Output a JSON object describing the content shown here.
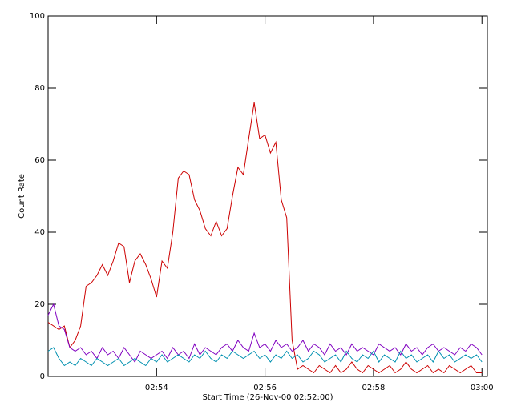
{
  "chart_data": {
    "type": "line",
    "x_label": "Start Time (26-Nov-00 02:52:00)",
    "y_label": "Count Rate",
    "x": [
      0,
      0.1,
      0.2,
      0.3,
      0.4,
      0.5,
      0.6,
      0.7,
      0.8,
      0.9,
      1,
      1.1,
      1.2,
      1.3,
      1.4,
      1.5,
      1.6,
      1.7,
      1.8,
      1.9,
      2,
      2.1,
      2.2,
      2.3,
      2.4,
      2.5,
      2.6,
      2.7,
      2.8,
      2.9,
      3,
      3.1,
      3.2,
      3.3,
      3.4,
      3.5,
      3.6,
      3.7,
      3.8,
      3.9,
      4,
      4.1,
      4.2,
      4.3,
      4.4,
      4.5,
      4.6,
      4.7,
      4.8,
      4.9,
      5,
      5.1,
      5.2,
      5.3,
      5.4,
      5.5,
      5.6,
      5.7,
      5.8,
      5.9,
      6,
      6.1,
      6.2,
      6.3,
      6.4,
      6.5,
      6.6,
      6.7,
      6.8,
      6.9,
      7,
      7.1,
      7.2,
      7.3,
      7.4,
      7.5,
      7.6,
      7.7,
      7.8,
      7.9,
      8
    ],
    "series": [
      {
        "color": "#cc0000",
        "values": [
          15,
          14,
          13,
          14,
          8,
          10,
          14,
          25,
          26,
          28,
          31,
          28,
          32,
          37,
          36,
          26,
          32,
          34,
          31,
          27,
          22,
          32,
          30,
          40,
          55,
          57,
          56,
          49,
          46,
          41,
          39,
          43,
          39,
          41,
          50,
          58,
          56,
          66,
          76,
          66,
          67,
          62,
          65,
          49,
          44,
          10,
          2,
          3,
          2,
          1,
          3,
          2,
          1,
          3,
          1,
          2,
          4,
          2,
          1,
          3,
          2,
          1,
          2,
          3,
          1,
          2,
          4,
          2,
          1,
          2,
          3,
          1,
          2,
          1,
          3,
          2,
          1,
          2,
          3,
          1,
          1
        ]
      },
      {
        "color": "#8000c0",
        "values": [
          17,
          20,
          14,
          13,
          8,
          7,
          8,
          6,
          7,
          5,
          8,
          6,
          7,
          5,
          8,
          6,
          4,
          7,
          6,
          5,
          6,
          7,
          5,
          8,
          6,
          7,
          5,
          9,
          6,
          8,
          7,
          6,
          8,
          9,
          7,
          10,
          8,
          7,
          12,
          8,
          9,
          7,
          10,
          8,
          9,
          7,
          8,
          10,
          7,
          9,
          8,
          6,
          9,
          7,
          8,
          6,
          9,
          7,
          8,
          7,
          6,
          9,
          8,
          7,
          8,
          6,
          9,
          7,
          8,
          6,
          8,
          9,
          7,
          8,
          7,
          6,
          8,
          7,
          9,
          8,
          6
        ]
      },
      {
        "color": "#0090b0",
        "values": [
          7,
          8,
          5,
          3,
          4,
          3,
          5,
          4,
          3,
          5,
          4,
          3,
          4,
          5,
          3,
          4,
          5,
          4,
          3,
          5,
          4,
          6,
          4,
          5,
          6,
          5,
          4,
          6,
          5,
          7,
          5,
          4,
          6,
          5,
          7,
          6,
          5,
          6,
          7,
          5,
          6,
          4,
          6,
          5,
          7,
          5,
          6,
          4,
          5,
          7,
          6,
          4,
          5,
          6,
          4,
          7,
          5,
          4,
          6,
          5,
          7,
          4,
          6,
          5,
          4,
          7,
          5,
          6,
          4,
          5,
          6,
          4,
          7,
          5,
          6,
          4,
          5,
          6,
          5,
          6,
          4
        ]
      }
    ],
    "xlim": [
      0,
      8.1
    ],
    "xticks": [
      {
        "value": 2,
        "label": "02:54"
      },
      {
        "value": 4,
        "label": "02:56"
      },
      {
        "value": 6,
        "label": "02:58"
      },
      {
        "value": 8,
        "label": "03:00"
      }
    ],
    "ylim": [
      0,
      100
    ],
    "yticks": [
      0,
      20,
      40,
      60,
      80,
      100
    ]
  }
}
